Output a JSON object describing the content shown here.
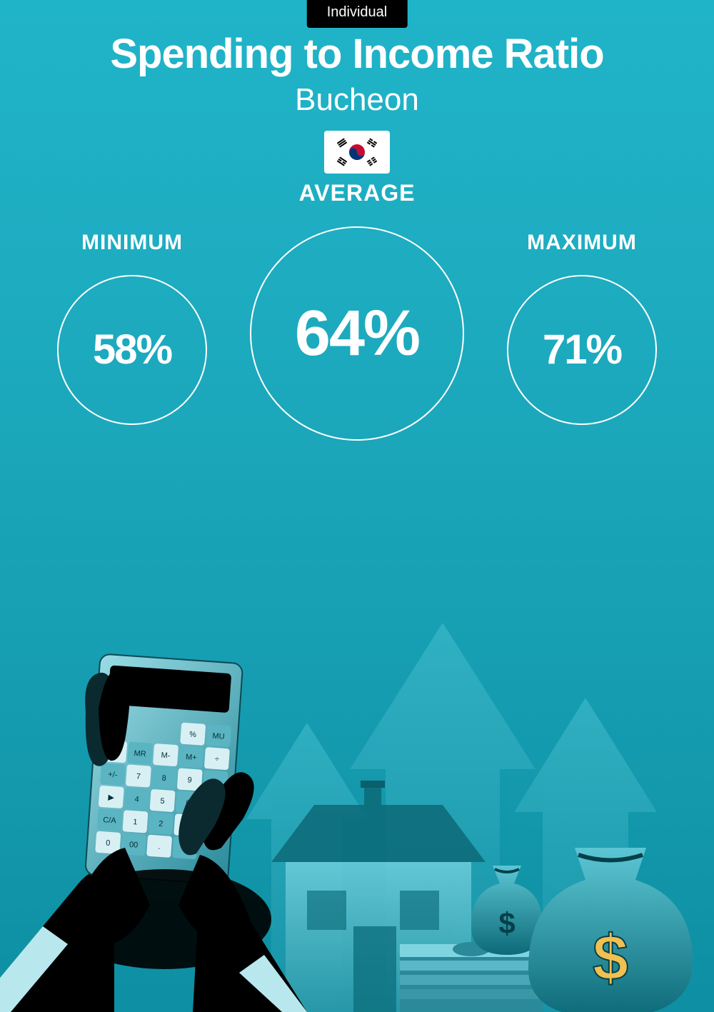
{
  "tab": {
    "label": "Individual",
    "bg": "#000000",
    "color": "#ffffff"
  },
  "header": {
    "title": "Spending to Income Ratio",
    "subtitle": "Bucheon",
    "flag_bg": "#ffffff"
  },
  "stats": {
    "minimum": {
      "label": "MINIMUM",
      "value": "58%"
    },
    "average": {
      "label": "AVERAGE",
      "value": "64%"
    },
    "maximum": {
      "label": "MAXIMUM",
      "value": "71%"
    }
  },
  "style": {
    "circle_border": "#ffffff",
    "text_color": "#ffffff",
    "bg_top": "#20b4c9",
    "bg_bottom": "#0e8fa3"
  },
  "illustration": {
    "arrow_color": "#3fb9c9",
    "arrow_shadow": "#1a8a9c",
    "house_light": "#5fc6d4",
    "house_dark": "#2a99aa",
    "roof_color": "#0d6a78",
    "bag_light": "#4cc0d0",
    "bag_dark": "#0d6a78",
    "bag_symbol": "#f0c050",
    "cash_light": "#7fd5df",
    "cash_dark": "#2a8a9a",
    "hand_dark": "#000000",
    "hand_highlight": "#0a3a44",
    "cuff_color": "#b8e8ee",
    "calc_body_light": "#8fd8e2",
    "calc_body_dark": "#1a6a78",
    "calc_display": "#000000",
    "calc_key_light": "#d8f0f4",
    "calc_key_dark": "#5ab4c2"
  }
}
